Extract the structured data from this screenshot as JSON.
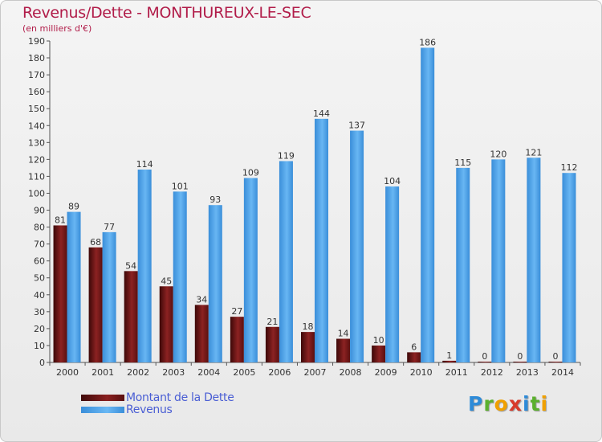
{
  "chart_data": {
    "type": "bar",
    "title": "Revenus/Dette - MONTHUREUX-LE-SEC",
    "subtitle": "(en milliers d'€)",
    "categories": [
      "2000",
      "2001",
      "2002",
      "2003",
      "2004",
      "2005",
      "2006",
      "2007",
      "2008",
      "2009",
      "2010",
      "2011",
      "2012",
      "2013",
      "2014"
    ],
    "series": [
      {
        "name": "Montant de la Dette",
        "values": [
          81,
          68,
          54,
          45,
          34,
          27,
          21,
          18,
          14,
          10,
          6,
          1,
          0,
          0,
          0
        ],
        "color": "#7a1a1a"
      },
      {
        "name": "Revenus",
        "values": [
          89,
          77,
          114,
          101,
          93,
          109,
          119,
          144,
          137,
          104,
          186,
          115,
          120,
          121,
          112
        ],
        "color": "#4aa3ec"
      }
    ],
    "ylim": [
      0,
      190
    ],
    "ytick_step": 10,
    "grid": false,
    "legend_position": "bottom-left"
  },
  "colors": {
    "title": "#b11c49",
    "legend_text": "#4a5ed4",
    "axis": "#555555"
  },
  "logo": {
    "letters": [
      "P",
      "r",
      "o",
      "x",
      "i",
      "t",
      "i"
    ],
    "letter_colors": [
      "#2e8bd8",
      "#5bb02e",
      "#f0a000",
      "#d83a2a",
      "#2e8bd8",
      "#5bb02e",
      "#f0a000"
    ]
  }
}
